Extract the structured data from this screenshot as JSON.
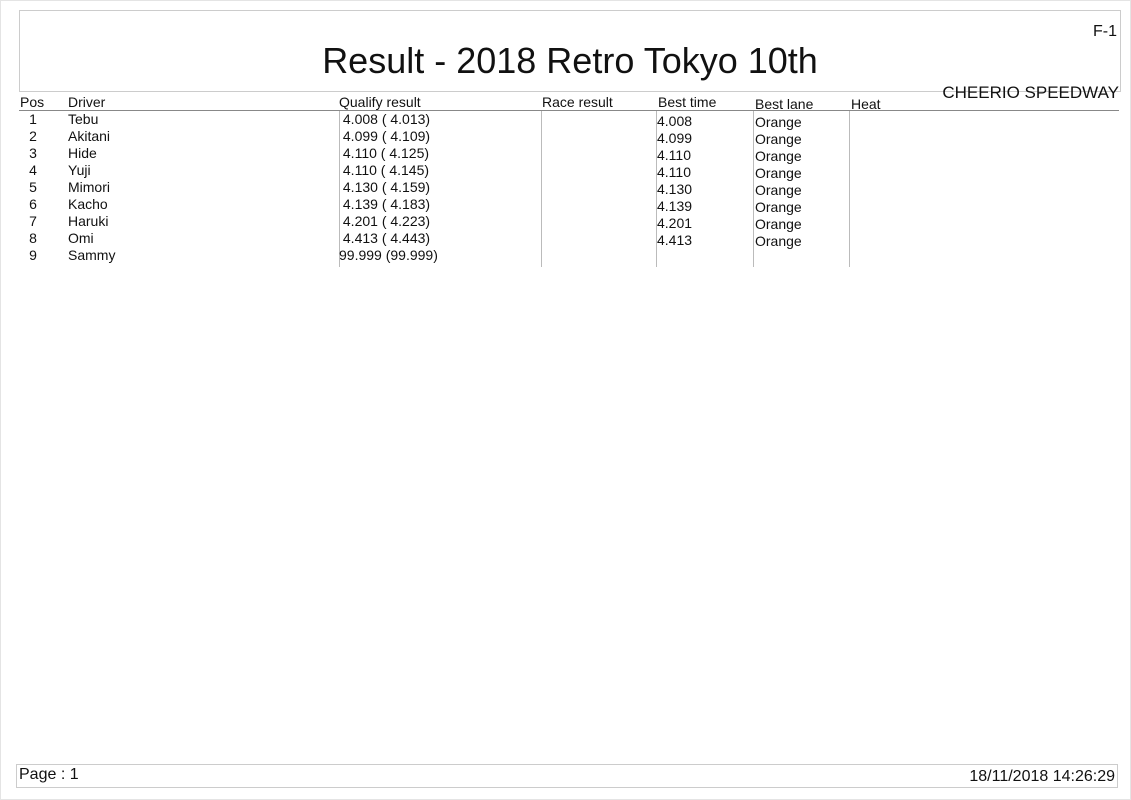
{
  "header": {
    "title": "Result - 2018 Retro Tokyo 10th",
    "sheet_id": "F-1",
    "venue": "CHEERIO SPEEDWAY"
  },
  "table": {
    "columns": [
      "Pos",
      "Driver",
      "Qualify result",
      "Race result",
      "Best time",
      "Best lane",
      "Heat"
    ],
    "rows": [
      {
        "pos": "1",
        "driver": "Tebu",
        "qualify": " 4.008 ( 4.013)",
        "race": "",
        "best_time": "4.008",
        "best_lane": "Orange",
        "heat": ""
      },
      {
        "pos": "2",
        "driver": "Akitani",
        "qualify": " 4.099 ( 4.109)",
        "race": "",
        "best_time": "4.099",
        "best_lane": "Orange",
        "heat": ""
      },
      {
        "pos": "3",
        "driver": "Hide",
        "qualify": " 4.110 ( 4.125)",
        "race": "",
        "best_time": "4.110",
        "best_lane": "Orange",
        "heat": ""
      },
      {
        "pos": "4",
        "driver": "Yuji",
        "qualify": " 4.110 ( 4.145)",
        "race": "",
        "best_time": "4.110",
        "best_lane": "Orange",
        "heat": ""
      },
      {
        "pos": "5",
        "driver": "Mimori",
        "qualify": " 4.130 ( 4.159)",
        "race": "",
        "best_time": "4.130",
        "best_lane": "Orange",
        "heat": ""
      },
      {
        "pos": "6",
        "driver": "Kacho",
        "qualify": " 4.139 ( 4.183)",
        "race": "",
        "best_time": "4.139",
        "best_lane": "Orange",
        "heat": ""
      },
      {
        "pos": "7",
        "driver": "Haruki",
        "qualify": " 4.201 ( 4.223)",
        "race": "",
        "best_time": "4.201",
        "best_lane": "Orange",
        "heat": ""
      },
      {
        "pos": "8",
        "driver": "Omi",
        "qualify": " 4.413 ( 4.443)",
        "race": "",
        "best_time": "4.413",
        "best_lane": "Orange",
        "heat": ""
      },
      {
        "pos": "9",
        "driver": "Sammy",
        "qualify": "99.999 (99.999)",
        "race": "",
        "best_time": "",
        "best_lane": "",
        "heat": ""
      }
    ]
  },
  "footer": {
    "page": "Page : 1",
    "datetime": "18/11/2018  14:26:29"
  }
}
